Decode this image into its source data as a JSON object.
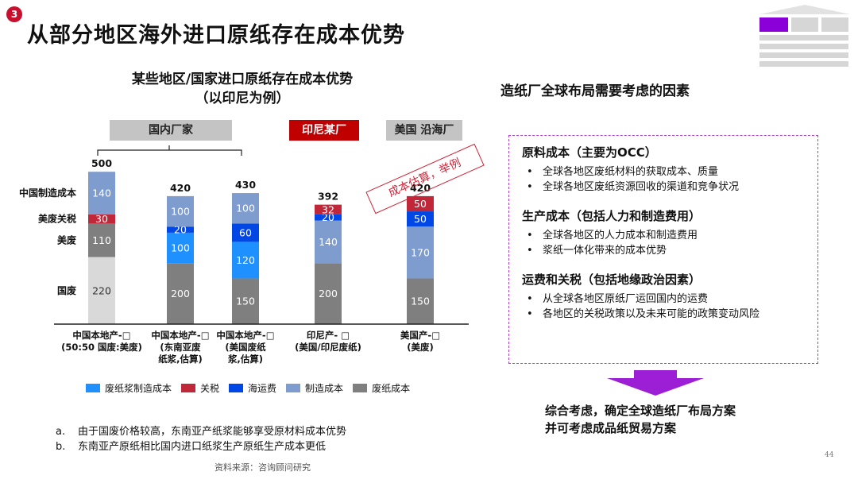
{
  "page": {
    "badge": "3",
    "title": "从部分地区海外进口原纸存在成本优势",
    "subtitle_line1": "某些地区/国家进口原纸存在成本优势",
    "subtitle_line2": "（以印尼为例）",
    "groups": {
      "domestic": "国内厂家",
      "indonesia": "印尼某厂",
      "usa": "美国 沿海厂"
    },
    "stamp": "成本估算，举例",
    "right_title": "造纸厂全球布局需要考虑的因素",
    "factors": [
      {
        "title": "原料成本（主要为OCC）",
        "bullets": [
          "全球各地区废纸材料的获取成本、质量",
          "全球各地区废纸资源回收的渠道和竞争状况"
        ]
      },
      {
        "title": "生产成本（包括人力和制造费用）",
        "bullets": [
          "全球各地区的人力成本和制造费用",
          "浆纸一体化带来的成本优势"
        ]
      },
      {
        "title": "运费和关税（包括地缘政治因素）",
        "bullets": [
          "从全球各地区原纸厂运回国内的运费",
          "各地区的关税政策以及未来可能的政策变动风险"
        ]
      }
    ],
    "conclusion_line1": "综合考虑，确定全球造纸厂布局方案",
    "conclusion_line2": "并可考虑成品纸贸易方案",
    "notes": [
      {
        "key": "a.",
        "text": "由于国废价格较高，东南亚产纸浆能够享受原材料成本优势"
      },
      {
        "key": "b.",
        "text": "东南亚产原纸相比国内进口纸浆生产原纸生产成本更低"
      }
    ],
    "source": "资料来源：咨询顾问研究",
    "page_number": "44"
  },
  "chart_data": {
    "type": "bar",
    "stacked": true,
    "categories": [
      [
        "中国本地产-□",
        "(50:50 国废:美废)"
      ],
      [
        "中国本地产-□",
        "(东南亚废",
        "纸浆,估算)"
      ],
      [
        "中国本地产-□",
        "(美国废纸",
        "浆,估算)"
      ],
      [
        "印尼产- □",
        "(美国/印尼废纸)"
      ],
      [
        "美国产-□",
        "(美废)"
      ]
    ],
    "totals": [
      500,
      420,
      430,
      392,
      420
    ],
    "segments": [
      [
        {
          "name": "国废",
          "value": 220,
          "color": "#d9d9d9"
        },
        {
          "name": "美废",
          "value": 110,
          "color": "#7f7f7f"
        },
        {
          "name": "美废关税",
          "value": 30,
          "color": "#c0283a"
        },
        {
          "name": "中国制造成本",
          "value": 140,
          "color": "#7f9ccf"
        }
      ],
      [
        {
          "name": "废纸成本",
          "value": 200,
          "color": "#7f7f7f"
        },
        {
          "name": "废纸浆制造成本",
          "value": 100,
          "color": "#1e90ff"
        },
        {
          "name": "海运费",
          "value": 20,
          "color": "#0047e6"
        },
        {
          "name": "制造成本",
          "value": 100,
          "color": "#7f9ccf"
        }
      ],
      [
        {
          "name": "废纸成本",
          "value": 150,
          "color": "#7f7f7f"
        },
        {
          "name": "废纸浆制造成本",
          "value": 120,
          "color": "#1e90ff"
        },
        {
          "name": "海运费",
          "value": 60,
          "color": "#0047e6"
        },
        {
          "name": "制造成本",
          "value": 100,
          "color": "#7f9ccf"
        }
      ],
      [
        {
          "name": "废纸成本",
          "value": 200,
          "color": "#7f7f7f"
        },
        {
          "name": "制造成本",
          "value": 140,
          "color": "#7f9ccf"
        },
        {
          "name": "海运费",
          "value": 20,
          "color": "#0047e6"
        },
        {
          "name": "关税",
          "value": 32,
          "color": "#c0283a"
        }
      ],
      [
        {
          "name": "废纸成本",
          "value": 150,
          "color": "#7f7f7f"
        },
        {
          "name": "制造成本",
          "value": 170,
          "color": "#7f9ccf"
        },
        {
          "name": "海运费",
          "value": 50,
          "color": "#0047e6"
        },
        {
          "name": "关税",
          "value": 50,
          "color": "#c0283a"
        }
      ]
    ],
    "first_bar_labels": [
      "中国制造成本",
      "美废关税",
      "美废",
      "国废"
    ],
    "legend": [
      {
        "name": "废纸浆制造成本",
        "color": "#1e90ff"
      },
      {
        "name": "关税",
        "color": "#c0283a"
      },
      {
        "name": "海运费",
        "color": "#0047e6"
      },
      {
        "name": "制造成本",
        "color": "#7f9ccf"
      },
      {
        "name": "废纸成本",
        "color": "#7f7f7f"
      }
    ]
  }
}
